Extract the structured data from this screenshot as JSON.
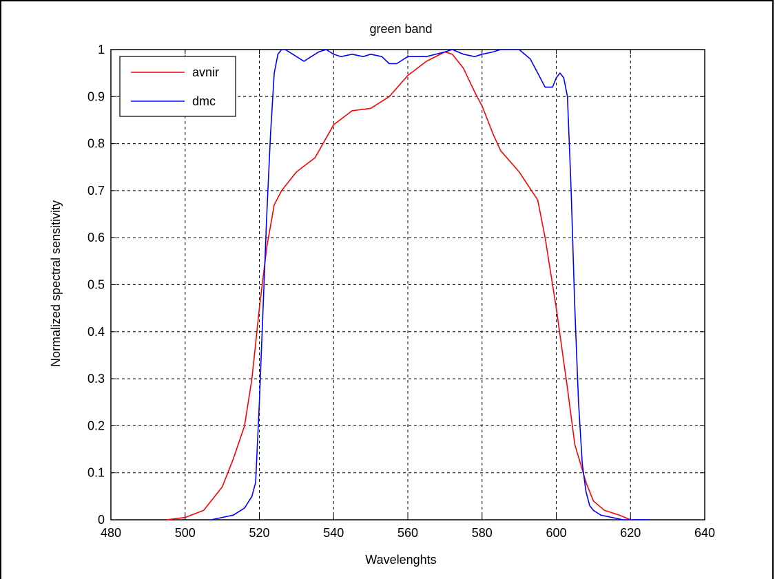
{
  "chart_data": {
    "type": "line",
    "title": "green band",
    "xlabel": "Wavelenghts",
    "ylabel": "Normalized spectral sensitivity",
    "xlim": [
      480,
      640
    ],
    "ylim": [
      0,
      1
    ],
    "xticks": [
      480,
      500,
      520,
      540,
      560,
      580,
      600,
      620,
      640
    ],
    "yticks": [
      0,
      0.1,
      0.2,
      0.3,
      0.4,
      0.5,
      0.6,
      0.7,
      0.8,
      0.9,
      1
    ],
    "xtick_labels": [
      "480",
      "500",
      "520",
      "540",
      "560",
      "580",
      "600",
      "620",
      "640"
    ],
    "ytick_labels": [
      "0",
      "0.1",
      "0.2",
      "0.3",
      "0.4",
      "0.5",
      "0.6",
      "0.7",
      "0.8",
      "0.9",
      "1"
    ],
    "grid": true,
    "legend_position": "top-left",
    "series": [
      {
        "name": "avnir",
        "color": "#ff0000",
        "x": [
          495,
          500,
          505,
          510,
          513,
          516,
          518,
          520,
          522,
          524,
          526,
          530,
          535,
          540,
          545,
          550,
          555,
          560,
          565,
          570,
          572,
          575,
          578,
          580,
          583,
          585,
          590,
          595,
          597,
          600,
          603,
          605,
          608,
          610,
          613,
          617,
          620
        ],
        "y": [
          0.0,
          0.005,
          0.02,
          0.07,
          0.13,
          0.2,
          0.3,
          0.45,
          0.58,
          0.67,
          0.7,
          0.74,
          0.77,
          0.84,
          0.87,
          0.875,
          0.9,
          0.945,
          0.975,
          0.995,
          0.99,
          0.96,
          0.91,
          0.88,
          0.82,
          0.785,
          0.74,
          0.68,
          0.6,
          0.45,
          0.28,
          0.16,
          0.08,
          0.04,
          0.02,
          0.01,
          0.0
        ]
      },
      {
        "name": "dmc",
        "color": "#0000ff",
        "x": [
          507,
          510,
          513,
          516,
          518,
          519,
          520,
          521,
          522,
          523,
          524,
          525,
          526,
          527,
          528,
          530,
          532,
          534,
          536,
          538,
          540,
          542,
          545,
          548,
          550,
          553,
          555,
          557,
          560,
          565,
          570,
          572,
          575,
          578,
          580,
          583,
          585,
          588,
          590,
          593,
          595,
          597,
          599,
          600,
          601,
          602,
          603,
          604,
          605,
          606,
          607,
          608,
          609,
          610,
          612,
          615,
          618,
          620,
          622,
          625
        ],
        "y": [
          0.0,
          0.005,
          0.01,
          0.025,
          0.05,
          0.08,
          0.25,
          0.45,
          0.65,
          0.82,
          0.95,
          0.99,
          1.0,
          1.0,
          0.995,
          0.985,
          0.975,
          0.985,
          0.995,
          1.0,
          0.99,
          0.985,
          0.99,
          0.985,
          0.99,
          0.985,
          0.97,
          0.97,
          0.985,
          0.985,
          0.995,
          1.0,
          0.99,
          0.985,
          0.99,
          0.995,
          1.0,
          1.0,
          1.0,
          0.98,
          0.95,
          0.92,
          0.92,
          0.94,
          0.95,
          0.94,
          0.9,
          0.7,
          0.45,
          0.25,
          0.12,
          0.06,
          0.03,
          0.02,
          0.01,
          0.005,
          0.0,
          0.0,
          0.0,
          0.0
        ]
      }
    ]
  }
}
